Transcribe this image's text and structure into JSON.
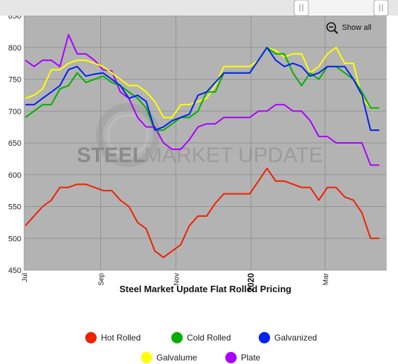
{
  "chart_data": {
    "type": "line",
    "title": "Steel Market Update Flat Rolled Pricing",
    "watermark": {
      "bold": "STEEL",
      "light_1": "MARKET",
      "light_2": "UPDATE"
    },
    "show_all_label": "Show all",
    "y_ticks": [
      "450",
      "500",
      "550",
      "600",
      "650",
      "700",
      "750",
      "800",
      "850"
    ],
    "ylim": [
      450,
      850
    ],
    "x_domain": [
      "2019-07-01",
      "2020-04-20"
    ],
    "x_ticks": [
      {
        "label": "Jul",
        "date": "2019-07-01",
        "bold": false
      },
      {
        "label": "Sep",
        "date": "2019-09-01",
        "bold": false
      },
      {
        "label": "Nov",
        "date": "2019-11-01",
        "bold": false
      },
      {
        "label": "2020",
        "date": "2020-01-01",
        "bold": true
      },
      {
        "label": "Mar",
        "date": "2020-03-01",
        "bold": false
      }
    ],
    "grid": true,
    "legend_position": "bottom",
    "x": [
      "2019-07-02",
      "2019-07-09",
      "2019-07-16",
      "2019-07-23",
      "2019-07-30",
      "2019-08-06",
      "2019-08-13",
      "2019-08-20",
      "2019-08-27",
      "2019-09-03",
      "2019-09-10",
      "2019-09-17",
      "2019-09-24",
      "2019-10-01",
      "2019-10-08",
      "2019-10-15",
      "2019-10-22",
      "2019-10-29",
      "2019-11-05",
      "2019-11-12",
      "2019-11-19",
      "2019-11-26",
      "2019-12-03",
      "2019-12-10",
      "2019-12-17",
      "2019-12-24",
      "2019-12-31",
      "2020-01-07",
      "2020-01-14",
      "2020-01-21",
      "2020-01-28",
      "2020-02-04",
      "2020-02-11",
      "2020-02-18",
      "2020-02-25",
      "2020-03-03",
      "2020-03-10",
      "2020-03-17",
      "2020-03-24",
      "2020-03-31",
      "2020-04-07",
      "2020-04-14"
    ],
    "series": [
      {
        "name": "Hot Rolled",
        "color": "#f02000",
        "values": [
          520,
          535,
          550,
          560,
          580,
          580,
          585,
          585,
          580,
          575,
          575,
          560,
          550,
          525,
          515,
          480,
          470,
          480,
          490,
          520,
          535,
          535,
          555,
          570,
          570,
          570,
          570,
          590,
          610,
          590,
          590,
          585,
          580,
          580,
          560,
          580,
          580,
          565,
          560,
          540,
          500,
          500
        ]
      },
      {
        "name": "Cold Rolled",
        "color": "#00b000",
        "values": [
          690,
          700,
          710,
          710,
          735,
          740,
          760,
          745,
          750,
          755,
          745,
          740,
          730,
          720,
          705,
          670,
          670,
          680,
          690,
          690,
          700,
          730,
          730,
          760,
          760,
          760,
          760,
          780,
          800,
          790,
          790,
          760,
          740,
          760,
          750,
          770,
          770,
          760,
          750,
          730,
          705,
          705
        ]
      },
      {
        "name": "Galvanized",
        "color": "#0022ee",
        "values": [
          710,
          710,
          720,
          730,
          740,
          765,
          770,
          755,
          758,
          760,
          750,
          740,
          720,
          725,
          715,
          670,
          675,
          685,
          690,
          695,
          725,
          730,
          745,
          760,
          760,
          760,
          760,
          780,
          800,
          780,
          770,
          775,
          770,
          755,
          760,
          770,
          770,
          770,
          750,
          725,
          670,
          670
        ]
      },
      {
        "name": "Galvalume",
        "color": "#ffff00",
        "values": [
          720,
          725,
          735,
          765,
          765,
          775,
          780,
          780,
          775,
          770,
          760,
          750,
          740,
          740,
          730,
          715,
          690,
          690,
          710,
          710,
          715,
          720,
          740,
          770,
          770,
          770,
          770,
          780,
          800,
          795,
          785,
          790,
          790,
          760,
          770,
          790,
          800,
          775,
          775,
          720,
          705,
          705
        ]
      },
      {
        "name": "Plate",
        "color": "#aa00ff",
        "values": [
          780,
          770,
          780,
          780,
          770,
          820,
          790,
          790,
          780,
          765,
          763,
          730,
          720,
          690,
          675,
          675,
          650,
          640,
          640,
          655,
          675,
          680,
          680,
          690,
          690,
          690,
          690,
          700,
          700,
          710,
          710,
          700,
          700,
          685,
          660,
          660,
          650,
          650,
          650,
          650,
          615,
          615
        ]
      }
    ]
  }
}
